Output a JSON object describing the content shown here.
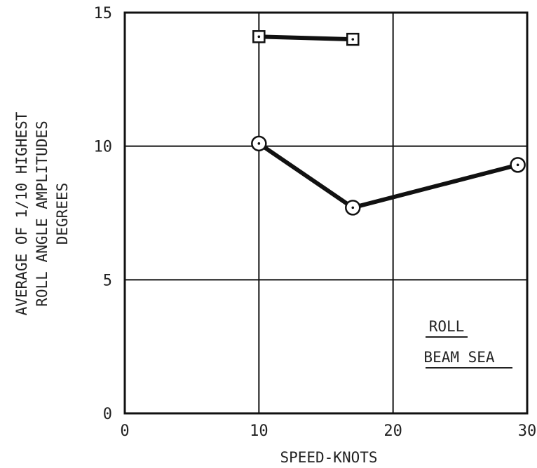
{
  "chart_data": {
    "type": "line",
    "xlabel": "SPEED-KNOTS",
    "ylabel_lines": [
      "AVERAGE OF 1/10 HIGHEST",
      "ROLL ANGLE AMPLITUDES",
      "DEGREES"
    ],
    "xlim": [
      0,
      30
    ],
    "ylim": [
      0,
      15
    ],
    "x_ticks": [
      0,
      10,
      20,
      30
    ],
    "y_ticks": [
      0,
      5,
      10,
      15
    ],
    "grid": true,
    "annotations": [
      "ROLL",
      "BEAM SEA"
    ],
    "series": [
      {
        "marker": "square",
        "x": [
          10,
          17
        ],
        "y": [
          14.1,
          14.0
        ]
      },
      {
        "marker": "circle",
        "x": [
          10,
          17,
          29.3
        ],
        "y": [
          10.1,
          7.7,
          9.3
        ]
      }
    ]
  }
}
